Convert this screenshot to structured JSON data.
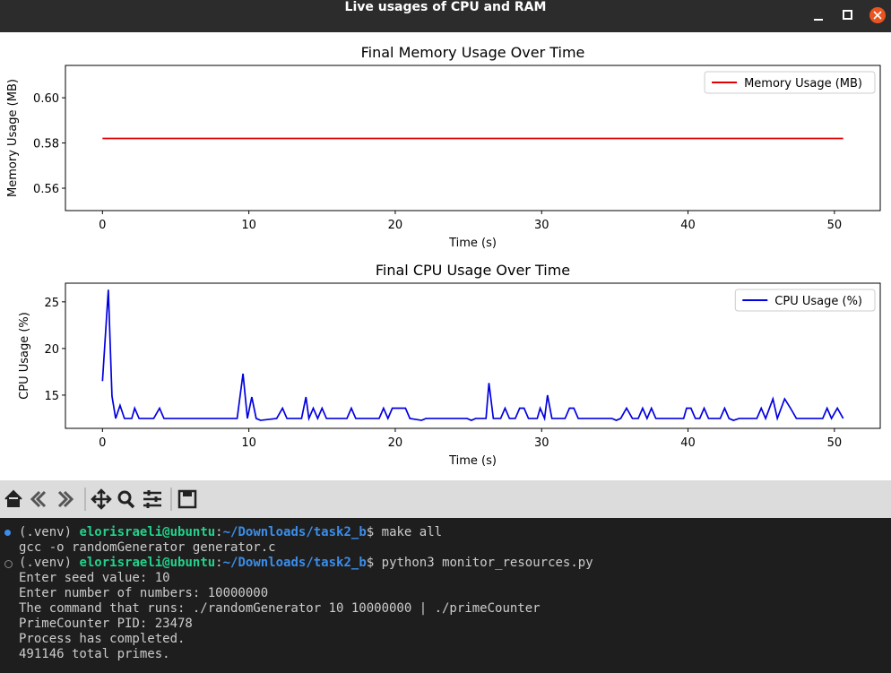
{
  "window": {
    "title": "Live usages of CPU and RAM"
  },
  "chart_data": [
    {
      "type": "line",
      "title": "Final Memory Usage Over Time",
      "x_label": "Time (s)",
      "y_label": "Memory Usage (MB)",
      "x": [
        0,
        50.6
      ],
      "series": [
        {
          "name": "Memory Usage (MB)",
          "color": "#e00000",
          "values": [
            0.582,
            0.582
          ]
        }
      ],
      "xlim": [
        -2.53,
        53.13
      ],
      "xticks": [
        0,
        10,
        20,
        30,
        40,
        50
      ],
      "ylim": [
        0.5501,
        0.6143
      ],
      "yticks": [
        0.56,
        0.58,
        {
          "value": 0.6,
          "label": "0.60"
        }
      ],
      "legend": "upper right",
      "grid": false
    },
    {
      "type": "line",
      "title": "Final CPU Usage Over Time",
      "x_label": "Time (s)",
      "y_label": "CPU Usage (%)",
      "x": [
        0,
        0.4,
        0.65,
        0.9,
        1.2,
        1.5,
        2.0,
        2.2,
        2.5,
        3.0,
        3.5,
        3.9,
        4.2,
        8.0,
        9.2,
        9.6,
        9.9,
        10.2,
        10.5,
        10.8,
        11.9,
        12.3,
        12.6,
        13.6,
        13.9,
        14.1,
        14.4,
        14.7,
        15.0,
        15.3,
        16.7,
        17.0,
        17.3,
        18.9,
        19.2,
        19.5,
        19.8,
        20.7,
        21.0,
        21.8,
        22.1,
        24.9,
        25.2,
        25.5,
        26.2,
        26.4,
        26.7,
        27.2,
        27.5,
        27.8,
        28.2,
        28.5,
        28.8,
        29.1,
        29.7,
        29.9,
        30.2,
        30.4,
        30.7,
        31.6,
        31.9,
        32.2,
        32.5,
        34.8,
        35.1,
        35.4,
        35.8,
        36.2,
        36.6,
        36.9,
        37.2,
        37.5,
        37.8,
        39.7,
        39.9,
        40.2,
        40.5,
        40.8,
        41.1,
        41.4,
        42.2,
        42.5,
        42.8,
        43.1,
        43.5,
        44.7,
        45.0,
        45.3,
        45.8,
        46.1,
        46.6,
        47.0,
        47.4,
        49.2,
        49.5,
        49.8,
        50.2,
        50.6
      ],
      "series": [
        {
          "name": "CPU Usage (%)",
          "color": "#0000e0",
          "values": [
            16.5,
            26.3,
            14.9,
            12.5,
            13.9,
            12.5,
            12.5,
            13.6,
            12.5,
            12.5,
            12.5,
            13.6,
            12.5,
            12.5,
            12.5,
            17.3,
            12.5,
            14.8,
            12.5,
            12.3,
            12.5,
            13.6,
            12.5,
            12.5,
            14.8,
            12.5,
            13.6,
            12.5,
            13.6,
            12.5,
            12.5,
            13.6,
            12.5,
            12.5,
            13.6,
            12.5,
            13.6,
            13.6,
            12.5,
            12.3,
            12.5,
            12.5,
            12.3,
            12.5,
            12.5,
            16.3,
            12.5,
            12.5,
            13.6,
            12.5,
            12.5,
            13.6,
            13.6,
            12.5,
            12.5,
            13.6,
            12.5,
            15.0,
            12.5,
            12.5,
            13.6,
            13.6,
            12.5,
            12.5,
            12.3,
            12.5,
            13.6,
            12.5,
            12.5,
            13.6,
            12.5,
            13.6,
            12.5,
            12.5,
            13.6,
            13.6,
            12.5,
            12.5,
            13.6,
            12.5,
            12.5,
            13.6,
            12.5,
            12.3,
            12.5,
            12.5,
            13.6,
            12.5,
            14.6,
            12.5,
            14.6,
            13.6,
            12.5,
            12.5,
            13.6,
            12.5,
            13.6,
            12.5
          ]
        }
      ],
      "xlim": [
        -2.53,
        53.13
      ],
      "xticks": [
        0,
        10,
        20,
        30,
        40,
        50
      ],
      "ylim": [
        11.44,
        27.0
      ],
      "yticks": [
        15,
        20,
        25
      ],
      "legend": "upper right",
      "grid": false
    }
  ],
  "terminal": {
    "lines": [
      {
        "prompt": {
          "venv": "(.venv)",
          "user": "elorisraeli@ubuntu",
          "sep": ":",
          "path": "~/Downloads/task2_b",
          "symbol": "$",
          "command": "make all"
        }
      },
      {
        "text": "gcc -o randomGenerator generator.c"
      },
      {
        "prompt": {
          "venv": "(.venv)",
          "user": "elorisraeli@ubuntu",
          "sep": ":",
          "path": "~/Downloads/task2_b",
          "symbol": "$",
          "command": "python3 monitor_resources.py"
        }
      },
      {
        "text": "Enter seed value: 10"
      },
      {
        "text": "Enter number of numbers: 10000000"
      },
      {
        "text": "The command that runs: ./randomGenerator 10 10000000 | ./primeCounter"
      },
      {
        "text": "PrimeCounter PID: 23478"
      },
      {
        "text": "Process has completed."
      },
      {
        "text": "491146 total primes."
      }
    ]
  }
}
